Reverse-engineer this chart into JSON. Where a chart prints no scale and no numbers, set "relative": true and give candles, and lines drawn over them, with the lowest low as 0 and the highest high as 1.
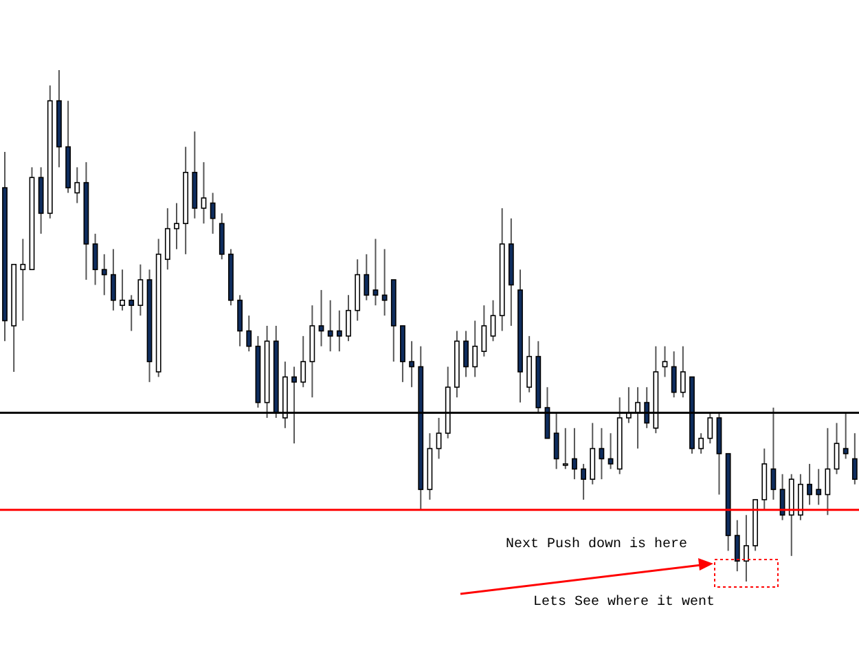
{
  "chart_data": {
    "type": "candlestick",
    "relative": true,
    "categories": [
      null,
      null,
      null,
      null,
      null,
      null,
      null,
      null,
      null,
      null,
      null,
      null,
      null,
      null,
      null,
      null,
      null,
      null,
      null,
      null,
      null,
      null,
      null,
      null,
      null,
      null,
      null,
      null,
      null,
      null,
      null,
      null,
      null,
      null,
      null,
      null,
      null,
      null,
      null,
      null,
      null,
      null,
      null,
      null,
      null,
      null,
      null,
      null,
      null,
      null,
      null,
      null,
      null,
      null,
      null,
      null,
      null,
      null,
      null,
      null,
      null,
      null,
      null,
      null,
      null,
      null,
      null,
      null,
      null,
      null,
      null,
      null,
      null,
      null,
      null,
      null,
      null,
      null,
      null,
      null,
      null,
      null,
      null,
      null,
      null,
      null,
      null,
      null,
      null,
      null,
      null,
      null,
      null,
      null,
      null
    ],
    "ohlc": [
      [
        0.77,
        0.84,
        0.47,
        0.51
      ],
      [
        0.5,
        0.62,
        0.41,
        0.62
      ],
      [
        0.61,
        0.67,
        0.51,
        0.62
      ],
      [
        0.61,
        0.81,
        0.61,
        0.79
      ],
      [
        0.79,
        0.81,
        0.68,
        0.72
      ],
      [
        0.72,
        0.97,
        0.71,
        0.94
      ],
      [
        0.94,
        1,
        0.81,
        0.85
      ],
      [
        0.85,
        0.94,
        0.76,
        0.77
      ],
      [
        0.76,
        0.81,
        0.74,
        0.78
      ],
      [
        0.78,
        0.82,
        0.59,
        0.66
      ],
      [
        0.66,
        0.68,
        0.58,
        0.61
      ],
      [
        0.61,
        0.64,
        0.56,
        0.6
      ],
      [
        0.6,
        0.65,
        0.53,
        0.55
      ],
      [
        0.54,
        0.61,
        0.53,
        0.55
      ],
      [
        0.55,
        0.56,
        0.49,
        0.54
      ],
      [
        0.54,
        0.62,
        0.52,
        0.59
      ],
      [
        0.59,
        0.61,
        0.39,
        0.43
      ],
      [
        0.41,
        0.67,
        0.4,
        0.64
      ],
      [
        0.63,
        0.73,
        0.61,
        0.69
      ],
      [
        0.69,
        0.74,
        0.65,
        0.7
      ],
      [
        0.7,
        0.85,
        0.64,
        0.8
      ],
      [
        0.8,
        0.88,
        0.71,
        0.73
      ],
      [
        0.73,
        0.82,
        0.7,
        0.75
      ],
      [
        0.74,
        0.76,
        0.68,
        0.71
      ],
      [
        0.7,
        0.72,
        0.63,
        0.64
      ],
      [
        0.64,
        0.65,
        0.54,
        0.55
      ],
      [
        0.55,
        0.56,
        0.46,
        0.49
      ],
      [
        0.49,
        0.52,
        0.45,
        0.46
      ],
      [
        0.46,
        0.48,
        0.34,
        0.35
      ],
      [
        0.35,
        0.5,
        0.32,
        0.47
      ],
      [
        0.47,
        0.5,
        0.32,
        0.33
      ],
      [
        0.32,
        0.43,
        0.3,
        0.4
      ],
      [
        0.4,
        0.42,
        0.27,
        0.39
      ],
      [
        0.39,
        0.48,
        0.38,
        0.43
      ],
      [
        0.43,
        0.54,
        0.36,
        0.5
      ],
      [
        0.5,
        0.57,
        0.46,
        0.49
      ],
      [
        0.49,
        0.55,
        0.45,
        0.48
      ],
      [
        0.49,
        0.53,
        0.45,
        0.48
      ],
      [
        0.48,
        0.56,
        0.47,
        0.53
      ],
      [
        0.53,
        0.63,
        0.51,
        0.6
      ],
      [
        0.6,
        0.64,
        0.55,
        0.56
      ],
      [
        0.57,
        0.67,
        0.54,
        0.56
      ],
      [
        0.56,
        0.65,
        0.52,
        0.55
      ],
      [
        0.59,
        0.59,
        0.43,
        0.5
      ],
      [
        0.5,
        0.5,
        0.39,
        0.43
      ],
      [
        0.43,
        0.47,
        0.38,
        0.42
      ],
      [
        0.42,
        0.46,
        0.14,
        0.18
      ],
      [
        0.18,
        0.29,
        0.16,
        0.26
      ],
      [
        0.26,
        0.32,
        0.24,
        0.29
      ],
      [
        0.29,
        0.42,
        0.28,
        0.38
      ],
      [
        0.38,
        0.49,
        0.36,
        0.47
      ],
      [
        0.47,
        0.49,
        0.4,
        0.42
      ],
      [
        0.42,
        0.51,
        0.4,
        0.46
      ],
      [
        0.45,
        0.54,
        0.44,
        0.5
      ],
      [
        0.48,
        0.55,
        0.47,
        0.52
      ],
      [
        0.52,
        0.73,
        0.49,
        0.66
      ],
      [
        0.66,
        0.71,
        0.5,
        0.58
      ],
      [
        0.57,
        0.61,
        0.35,
        0.41
      ],
      [
        0.38,
        0.48,
        0.37,
        0.44
      ],
      [
        0.44,
        0.47,
        0.33,
        0.34
      ],
      [
        0.34,
        0.38,
        0.28,
        0.28
      ],
      [
        0.29,
        0.33,
        0.22,
        0.24
      ],
      [
        0.23,
        0.3,
        0.22,
        0.23
      ],
      [
        0.24,
        0.3,
        0.2,
        0.22
      ],
      [
        0.22,
        0.23,
        0.16,
        0.2
      ],
      [
        0.2,
        0.31,
        0.19,
        0.26
      ],
      [
        0.26,
        0.3,
        0.2,
        0.24
      ],
      [
        0.24,
        0.29,
        0.22,
        0.23
      ],
      [
        0.22,
        0.36,
        0.21,
        0.32
      ],
      [
        0.32,
        0.38,
        0.31,
        0.33
      ],
      [
        0.33,
        0.38,
        0.26,
        0.35
      ],
      [
        0.35,
        0.38,
        0.3,
        0.31
      ],
      [
        0.3,
        0.46,
        0.29,
        0.41
      ],
      [
        0.42,
        0.46,
        0.4,
        0.43
      ],
      [
        0.42,
        0.45,
        0.36,
        0.37
      ],
      [
        0.37,
        0.46,
        0.36,
        0.41
      ],
      [
        0.4,
        0.4,
        0.25,
        0.26
      ],
      [
        0.26,
        0.29,
        0.25,
        0.28
      ],
      [
        0.28,
        0.33,
        0.27,
        0.32
      ],
      [
        0.32,
        0.33,
        0.17,
        0.25
      ],
      [
        0.25,
        0.25,
        0.06,
        0.09
      ],
      [
        0.09,
        0.12,
        0.02,
        0.04
      ],
      [
        0.04,
        0.13,
        0,
        0.07
      ],
      [
        0.07,
        0.16,
        0.06,
        0.16
      ],
      [
        0.16,
        0.26,
        0.14,
        0.23
      ],
      [
        0.22,
        0.34,
        0.16,
        0.18
      ],
      [
        0.18,
        0.21,
        0.12,
        0.13
      ],
      [
        0.13,
        0.21,
        0.05,
        0.2
      ],
      [
        0.13,
        0.21,
        0.12,
        0.19
      ],
      [
        0.19,
        0.23,
        0.15,
        0.17
      ],
      [
        0.18,
        0.22,
        0.15,
        0.17
      ],
      [
        0.17,
        0.3,
        0.13,
        0.22
      ],
      [
        0.22,
        0.31,
        0.21,
        0.27
      ],
      [
        0.26,
        0.33,
        0.24,
        0.25
      ],
      [
        0.24,
        0.29,
        0.19,
        0.2
      ]
    ],
    "ref_lines": [
      {
        "axis": "y",
        "value": 0.14,
        "color": "#ff0000"
      },
      {
        "axis": "y",
        "value": 0.33,
        "color": "#000000"
      }
    ],
    "annotations": [
      "Next Push down is here",
      "Lets See where it went"
    ]
  }
}
